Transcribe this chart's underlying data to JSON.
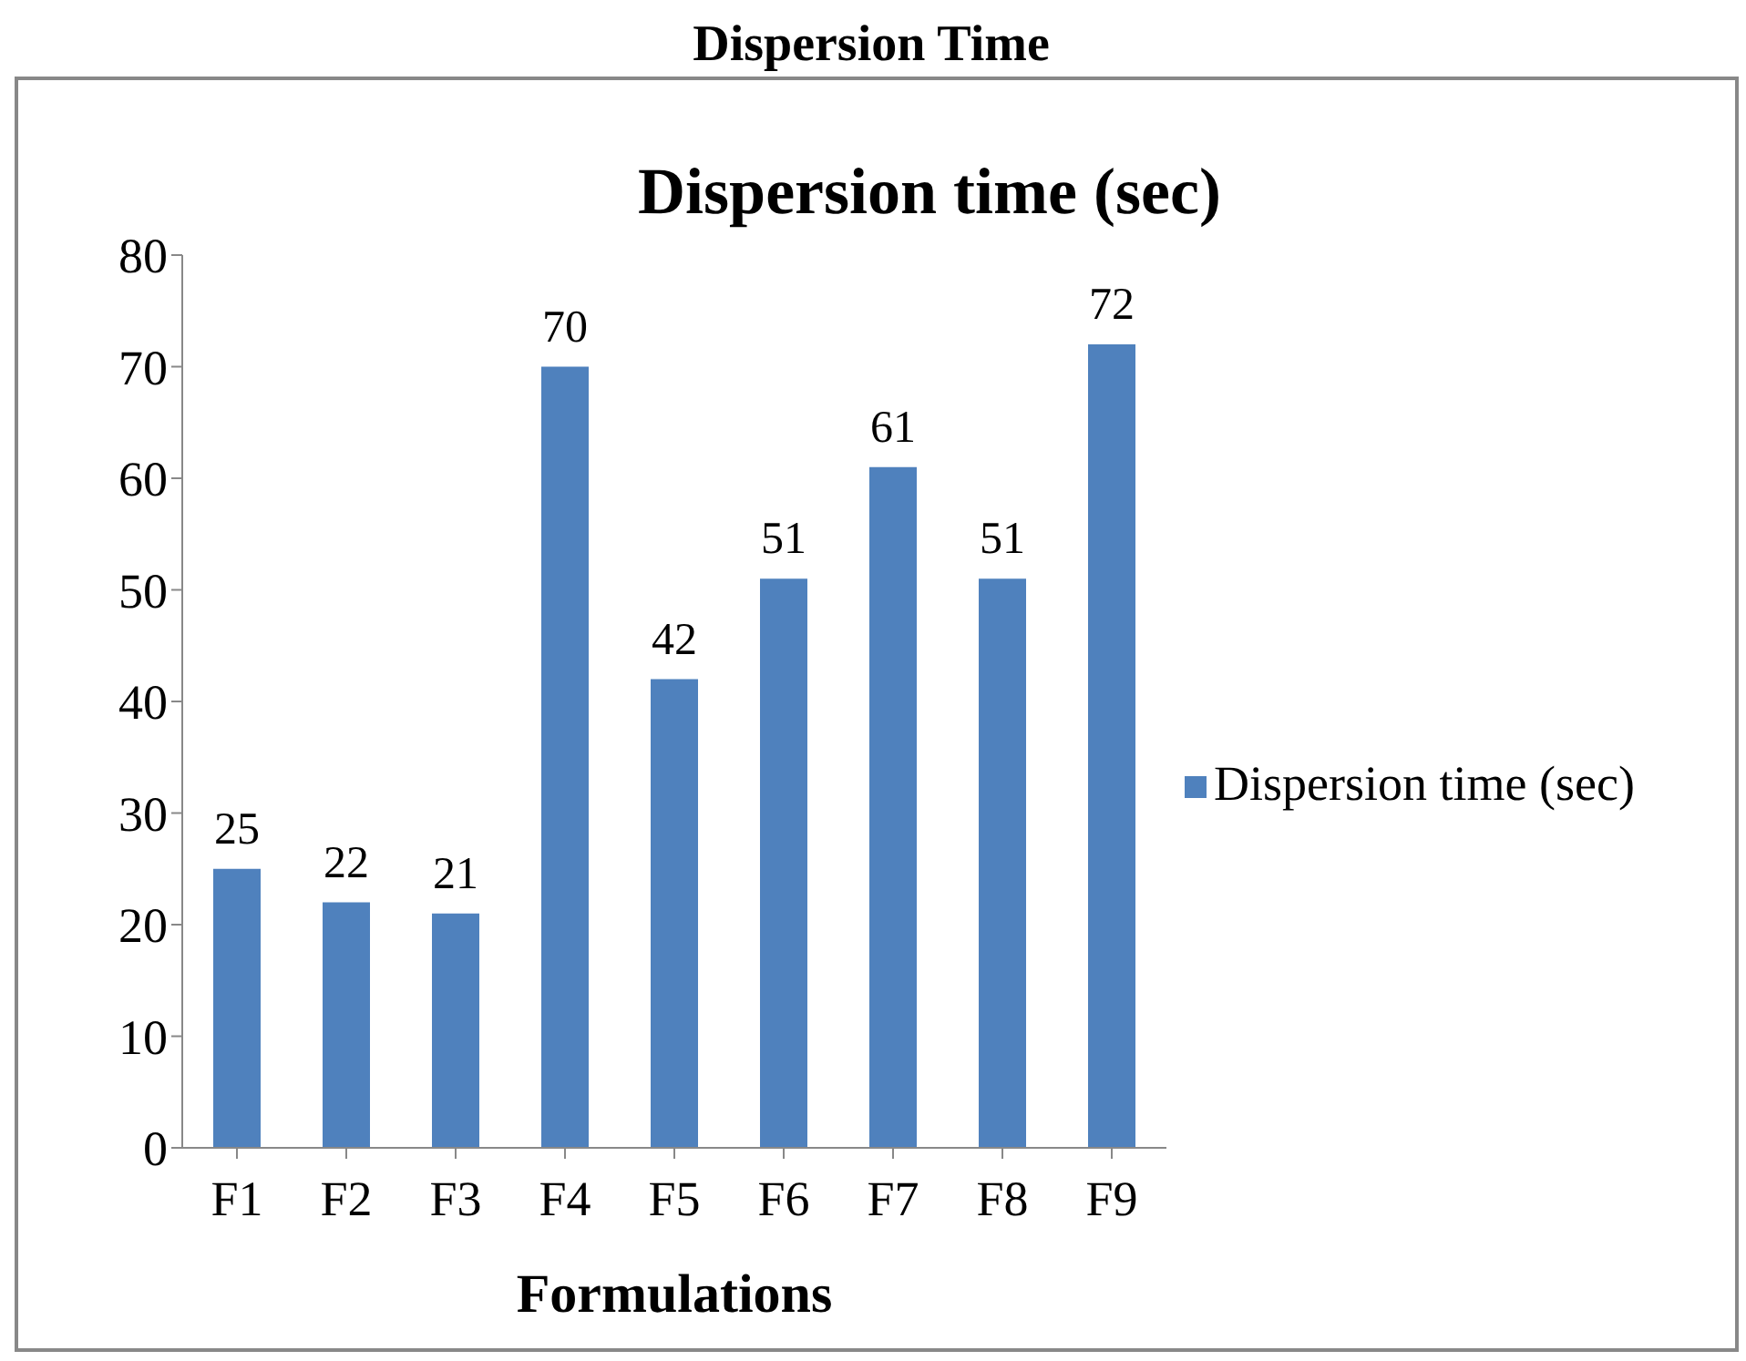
{
  "chart_data": {
    "type": "bar",
    "title": "Dispersion Time",
    "subtitle": "Dispersion time (sec)",
    "xlabel": "Formulations",
    "categories": [
      "F1",
      "F2",
      "F3",
      "F4",
      "F5",
      "F6",
      "F7",
      "F8",
      "F9"
    ],
    "series": [
      {
        "name": "Dispersion time (sec)",
        "color": "#4f81bd",
        "values": [
          25,
          22,
          21,
          70,
          42,
          51,
          61,
          51,
          72
        ]
      }
    ],
    "ylim": [
      0,
      80
    ],
    "yticks": [
      0,
      10,
      20,
      30,
      40,
      50,
      60,
      70,
      80
    ],
    "grid": false,
    "legend": "right",
    "data_labels": true
  }
}
